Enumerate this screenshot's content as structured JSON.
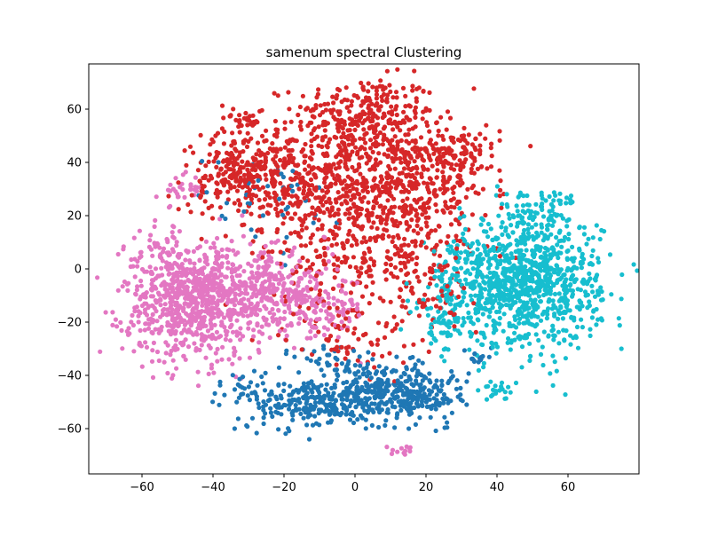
{
  "chart_data": {
    "type": "scatter",
    "title": "samenum spectral Clustering",
    "xlabel": "",
    "ylabel": "",
    "xlim": [
      -75,
      80
    ],
    "ylim": [
      -77,
      77
    ],
    "x_ticks": [
      -60,
      -40,
      -20,
      0,
      20,
      40,
      60
    ],
    "y_ticks": [
      -60,
      -40,
      -20,
      0,
      20,
      40,
      60
    ],
    "grid": false,
    "legend": "none",
    "series": [
      {
        "name": "cluster-red",
        "color": "#d62728",
        "blobs": [
          {
            "cx": 3,
            "cy": 58,
            "sx": 10,
            "sy": 7,
            "n": 260
          },
          {
            "cx": -12,
            "cy": 32,
            "sx": 15,
            "sy": 11,
            "n": 480
          },
          {
            "cx": 12,
            "cy": 30,
            "sx": 13,
            "sy": 11,
            "n": 380
          },
          {
            "cx": 27,
            "cy": 44,
            "sx": 7,
            "sy": 5,
            "n": 140
          },
          {
            "cx": -30,
            "cy": 40,
            "sx": 7,
            "sy": 6,
            "n": 140
          },
          {
            "cx": -37,
            "cy": 34,
            "sx": 4,
            "sy": 3,
            "n": 40
          },
          {
            "cx": -31,
            "cy": 57,
            "sx": 3,
            "sy": 2,
            "n": 25
          },
          {
            "cx": 5,
            "cy": 5,
            "sx": 14,
            "sy": 10,
            "n": 240
          },
          {
            "cx": -2,
            "cy": -25,
            "sx": 9,
            "sy": 7,
            "n": 70
          },
          {
            "cx": 18,
            "cy": -8,
            "sx": 7,
            "sy": 8,
            "n": 60
          }
        ]
      },
      {
        "name": "cluster-pink",
        "color": "#e377c2",
        "blobs": [
          {
            "cx": -45,
            "cy": -12,
            "sx": 10,
            "sy": 11,
            "n": 800
          },
          {
            "cx": -25,
            "cy": -8,
            "sx": 9,
            "sy": 7,
            "n": 240
          },
          {
            "cx": -10,
            "cy": -15,
            "sx": 7,
            "sy": 6,
            "n": 130
          },
          {
            "cx": -49,
            "cy": 30,
            "sx": 3,
            "sy": 3,
            "n": 30
          },
          {
            "cx": -55,
            "cy": 5,
            "sx": 4,
            "sy": 6,
            "n": 40
          },
          {
            "cx": 14,
            "cy": -68,
            "sx": 2,
            "sy": 1,
            "n": 12
          }
        ]
      },
      {
        "name": "cluster-cyan",
        "color": "#17becf",
        "blobs": [
          {
            "cx": 49,
            "cy": -5,
            "sx": 10,
            "sy": 12,
            "n": 900
          },
          {
            "cx": 33,
            "cy": -8,
            "sx": 6,
            "sy": 10,
            "n": 150
          },
          {
            "cx": 52,
            "cy": 22,
            "sx": 6,
            "sy": 4,
            "n": 70
          },
          {
            "cx": 40,
            "cy": -45,
            "sx": 2,
            "sy": 2,
            "n": 20
          },
          {
            "cx": 25,
            "cy": -20,
            "sx": 4,
            "sy": 5,
            "n": 50
          }
        ]
      },
      {
        "name": "cluster-blue",
        "color": "#1f77b4",
        "blobs": [
          {
            "cx": 10,
            "cy": -46,
            "sx": 8,
            "sy": 5,
            "n": 300
          },
          {
            "cx": -12,
            "cy": -50,
            "sx": 9,
            "sy": 5,
            "n": 260
          },
          {
            "cx": 22,
            "cy": -48,
            "sx": 5,
            "sy": 4,
            "n": 60
          },
          {
            "cx": 35,
            "cy": -33,
            "sx": 2,
            "sy": 2,
            "n": 15
          },
          {
            "cx": -5,
            "cy": -35,
            "sx": 6,
            "sy": 4,
            "n": 40
          },
          {
            "cx": -33,
            "cy": -45,
            "sx": 3,
            "sy": 3,
            "n": 15
          },
          {
            "cx": -25,
            "cy": 25,
            "sx": 10,
            "sy": 10,
            "n": 40
          }
        ]
      }
    ]
  }
}
